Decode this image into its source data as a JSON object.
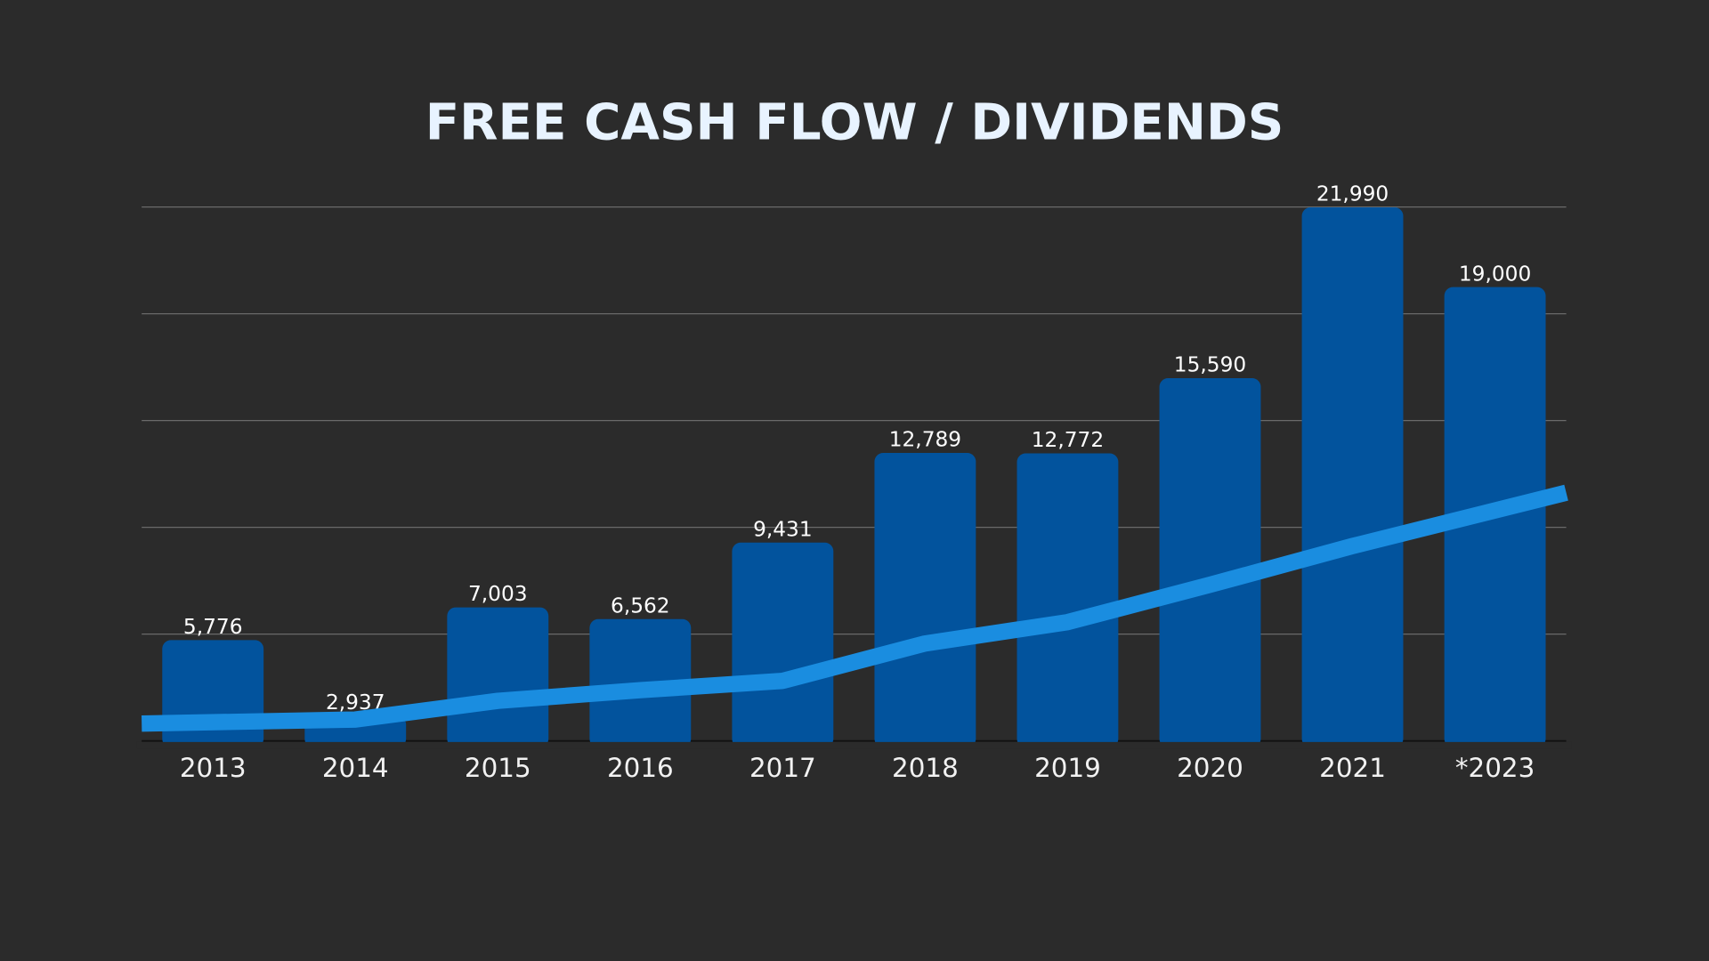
{
  "chart_data": {
    "type": "bar",
    "title": "FREE CASH FLOW / DIVIDENDS",
    "xlabel": "",
    "ylabel": "",
    "categories": [
      "2013",
      "2014",
      "2015",
      "2016",
      "2017",
      "2018",
      "2019",
      "2020",
      "2021",
      "*2023"
    ],
    "series": [
      {
        "name": "Free Cash Flow",
        "type": "bar",
        "values": [
          5776,
          2937,
          7003,
          6562,
          9431,
          12789,
          12772,
          15590,
          21990,
          19000
        ],
        "labels": [
          "5,776",
          "2,937",
          "7,003",
          "6,562",
          "9,431",
          "12,789",
          "12,772",
          "15,590",
          "21,990",
          "19,000"
        ]
      },
      {
        "name": "Dividends",
        "type": "line",
        "values": [
          2650,
          2800,
          3500,
          3900,
          4250,
          5650,
          6450,
          7850,
          9300,
          11300
        ]
      }
    ],
    "ylim": [
      2000,
      22000
    ],
    "yticks": [
      2000,
      6000,
      10000,
      14000,
      18000,
      22000
    ],
    "grid": true,
    "colors": {
      "bar": "#02539d",
      "line": "#1a8de0",
      "background": "#2b2b2b",
      "grid": "#6a6a6a"
    }
  }
}
